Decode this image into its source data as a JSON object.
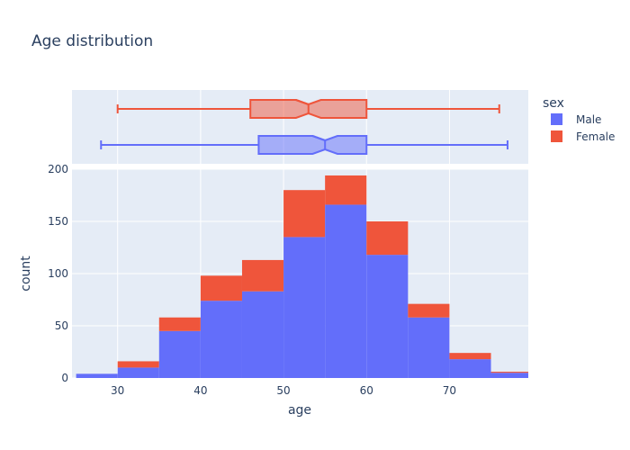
{
  "chart_data": {
    "type": "bar",
    "title": "Age distribution",
    "xlabel": "age",
    "ylabel": "count",
    "barmode": "stacked",
    "xlim": [
      24.5,
      79.5
    ],
    "ylim": [
      0,
      200
    ],
    "x_ticks": [
      30,
      40,
      50,
      60,
      70
    ],
    "y_ticks": [
      0,
      50,
      100,
      150,
      200
    ],
    "bins": [
      [
        25,
        30
      ],
      [
        30,
        35
      ],
      [
        35,
        40
      ],
      [
        40,
        45
      ],
      [
        45,
        50
      ],
      [
        50,
        55
      ],
      [
        55,
        60
      ],
      [
        60,
        65
      ],
      [
        65,
        70
      ],
      [
        70,
        75
      ],
      [
        75,
        80
      ]
    ],
    "series": [
      {
        "name": "Male",
        "values": [
          4,
          10,
          45,
          74,
          83,
          135,
          166,
          118,
          58,
          18,
          5
        ]
      },
      {
        "name": "Female",
        "values": [
          0,
          6,
          13,
          24,
          30,
          45,
          28,
          32,
          13,
          6,
          1
        ]
      }
    ],
    "boxplots": [
      {
        "name": "Female",
        "min": 30,
        "q1": 46,
        "median": 53,
        "q3": 60,
        "max": 76,
        "notch_low": 51.5,
        "notch_high": 54.5
      },
      {
        "name": "Male",
        "min": 28,
        "q1": 47,
        "median": 55,
        "q3": 60,
        "max": 77,
        "notch_low": 53.5,
        "notch_high": 56.5
      }
    ],
    "legend": {
      "title": "sex",
      "position": "right",
      "entries": [
        "Male",
        "Female"
      ]
    },
    "grid": true,
    "colors": {
      "Male": "#636efa",
      "Female": "#ef553b",
      "plot_bg": "#e5ecf6",
      "grid": "#ffffff",
      "text": "#2a3f5f"
    }
  }
}
